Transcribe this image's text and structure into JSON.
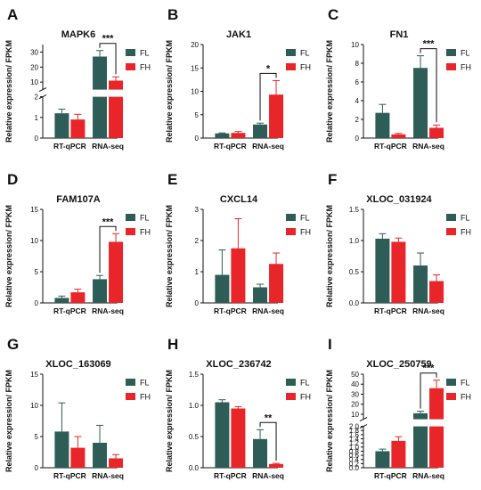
{
  "colors": {
    "FL": "#2e5d57",
    "FH": "#e8262a"
  },
  "chart_data": [
    {
      "panel_letter": "A",
      "title": "MAPK6",
      "type": "bar",
      "ylabel": "Relative expression/ FPKM",
      "categories": [
        "RT-qPCR",
        "RNA-seq"
      ],
      "series": [
        {
          "name": "FL",
          "values": [
            1.2,
            27
          ],
          "errors": [
            0.2,
            4
          ]
        },
        {
          "name": "FH",
          "values": [
            0.9,
            11
          ],
          "errors": [
            0.25,
            2.5
          ]
        }
      ],
      "axis_break": true,
      "ylim_lower": [
        0,
        2
      ],
      "yticks_lower": [
        0,
        1,
        2
      ],
      "ylim_upper": [
        5,
        35
      ],
      "yticks_upper": [
        10,
        20,
        30
      ],
      "significance": {
        "category_index": 1,
        "label": "***"
      }
    },
    {
      "panel_letter": "B",
      "title": "JAK1",
      "type": "bar",
      "ylabel": "Relative expression/ FPKM",
      "categories": [
        "RT-qPCR",
        "RNA-seq"
      ],
      "series": [
        {
          "name": "FL",
          "values": [
            1.0,
            2.9
          ],
          "errors": [
            0.1,
            0.3
          ]
        },
        {
          "name": "FH",
          "values": [
            1.1,
            9.3
          ],
          "errors": [
            0.3,
            3.0
          ]
        }
      ],
      "ylim": [
        0,
        20
      ],
      "yticks": [
        0,
        5,
        10,
        15,
        20
      ],
      "significance": {
        "category_index": 1,
        "label": "*"
      }
    },
    {
      "panel_letter": "C",
      "title": "FN1",
      "type": "bar",
      "ylabel": "Relative expression/ FPKM",
      "categories": [
        "RT-qPCR",
        "RNA-seq"
      ],
      "series": [
        {
          "name": "FL",
          "values": [
            2.7,
            7.5
          ],
          "errors": [
            0.9,
            1.3
          ]
        },
        {
          "name": "FH",
          "values": [
            0.4,
            1.1
          ],
          "errors": [
            0.1,
            0.3
          ]
        }
      ],
      "ylim": [
        0,
        10
      ],
      "yticks": [
        0,
        2,
        4,
        6,
        8,
        10
      ],
      "significance": {
        "category_index": 1,
        "label": "***"
      }
    },
    {
      "panel_letter": "D",
      "title": "FAM107A",
      "type": "bar",
      "ylabel": "Relative expression/ FPKM",
      "categories": [
        "RT-qPCR",
        "RNA-seq"
      ],
      "series": [
        {
          "name": "FL",
          "values": [
            0.8,
            3.8
          ],
          "errors": [
            0.3,
            0.6
          ]
        },
        {
          "name": "FH",
          "values": [
            1.7,
            9.8
          ],
          "errors": [
            0.5,
            1.3
          ]
        }
      ],
      "ylim": [
        0,
        15
      ],
      "yticks": [
        0,
        5,
        10,
        15
      ],
      "significance": {
        "category_index": 1,
        "label": "***"
      }
    },
    {
      "panel_letter": "E",
      "title": "CXCL14",
      "type": "bar",
      "ylabel": "Relative expression/ FPKM",
      "categories": [
        "RT-qPCR",
        "RNA-seq"
      ],
      "series": [
        {
          "name": "FL",
          "values": [
            0.9,
            0.5
          ],
          "errors": [
            0.8,
            0.1
          ]
        },
        {
          "name": "FH",
          "values": [
            1.75,
            1.25
          ],
          "errors": [
            0.95,
            0.35
          ]
        }
      ],
      "ylim": [
        0,
        3
      ],
      "yticks": [
        0,
        1,
        2,
        3
      ],
      "significance": null
    },
    {
      "panel_letter": "F",
      "title": "XLOC_031924",
      "type": "bar",
      "ylabel": "Relative expression/ FPKM",
      "categories": [
        "RT-qPCR",
        "RNA-seq"
      ],
      "series": [
        {
          "name": "FL",
          "values": [
            1.03,
            0.6
          ],
          "errors": [
            0.08,
            0.2
          ]
        },
        {
          "name": "FH",
          "values": [
            0.98,
            0.35
          ],
          "errors": [
            0.06,
            0.1
          ]
        }
      ],
      "ylim": [
        0,
        1.5
      ],
      "yticks": [
        0.0,
        0.5,
        1.0,
        1.5
      ],
      "significance": null
    },
    {
      "panel_letter": "G",
      "title": "XLOC_163069",
      "type": "bar",
      "ylabel": "Relative expression/ FPKM",
      "categories": [
        "RT-qPCR",
        "RNA-seq"
      ],
      "series": [
        {
          "name": "FL",
          "values": [
            5.8,
            4.0
          ],
          "errors": [
            4.6,
            2.8
          ]
        },
        {
          "name": "FH",
          "values": [
            3.2,
            1.5
          ],
          "errors": [
            1.8,
            0.6
          ]
        }
      ],
      "ylim": [
        0,
        15
      ],
      "yticks": [
        0,
        5,
        10,
        15
      ],
      "significance": null
    },
    {
      "panel_letter": "H",
      "title": "XLOC_236742",
      "type": "bar",
      "ylabel": "Relative expression/ FPKM",
      "categories": [
        "RT-qPCR",
        "RNA-seq"
      ],
      "series": [
        {
          "name": "FL",
          "values": [
            1.05,
            0.46
          ],
          "errors": [
            0.04,
            0.15
          ]
        },
        {
          "name": "FH",
          "values": [
            0.95,
            0.06
          ],
          "errors": [
            0.03,
            0.01
          ]
        }
      ],
      "ylim": [
        0,
        1.5
      ],
      "yticks": [
        0.0,
        0.5,
        1.0,
        1.5
      ],
      "significance": {
        "category_index": 1,
        "label": "**"
      }
    },
    {
      "panel_letter": "I",
      "title": "XLOC_250759",
      "type": "bar",
      "ylabel": "Relative expression/ FPKM",
      "categories": [
        "RT-qPCR",
        "RNA-seq"
      ],
      "series": [
        {
          "name": "FL",
          "values": [
            0.8,
            11
          ],
          "errors": [
            0.1,
            2
          ]
        },
        {
          "name": "FH",
          "values": [
            1.3,
            36
          ],
          "errors": [
            0.2,
            8
          ]
        }
      ],
      "axis_break": true,
      "ylim_lower": [
        0,
        2
      ],
      "yticks_lower": [
        0.0,
        0.2,
        0.4,
        0.6,
        0.8,
        1.0,
        1.2,
        1.4,
        1.6,
        1.8,
        2.0
      ],
      "ylim_upper": [
        5,
        50
      ],
      "yticks_upper": [
        10,
        20,
        30,
        40,
        50
      ],
      "significance": {
        "category_index": 1,
        "label": "***"
      }
    }
  ]
}
